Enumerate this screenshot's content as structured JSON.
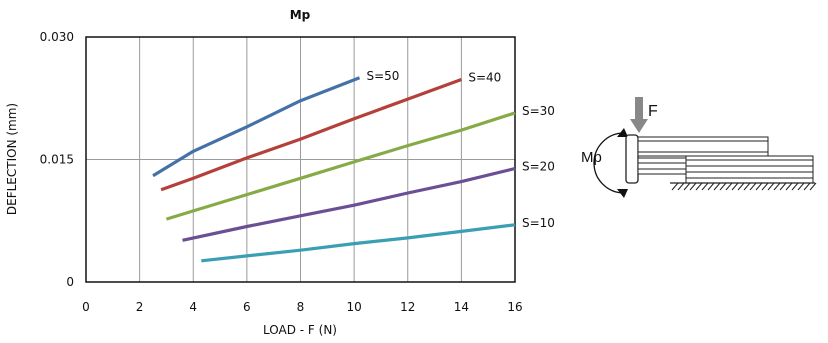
{
  "chart_data": {
    "type": "line",
    "title": "Mp",
    "xlabel": "LOAD - F (N)",
    "ylabel": "DEFLECTION (mm)",
    "xlim": [
      0,
      16
    ],
    "ylim": [
      0,
      0.03
    ],
    "x_ticks": [
      "0",
      "2",
      "4",
      "6",
      "8",
      "10",
      "12",
      "14",
      "16"
    ],
    "y_ticks": [
      "0",
      "0.015",
      "0.030"
    ],
    "grid": true,
    "series": [
      {
        "name": "S=50",
        "color": "#4472a8",
        "x": [
          2.5,
          4,
          6,
          8,
          10.2
        ],
        "y": [
          0.013,
          0.016,
          0.019,
          0.0222,
          0.025
        ]
      },
      {
        "name": "S=40",
        "color": "#b5403a",
        "x": [
          2.8,
          4,
          6,
          8,
          10,
          12,
          14
        ],
        "y": [
          0.0113,
          0.0127,
          0.0152,
          0.0175,
          0.02,
          0.0224,
          0.0248
        ]
      },
      {
        "name": "S=30",
        "color": "#86ab46",
        "x": [
          3,
          4,
          6,
          8,
          10,
          12,
          14,
          16
        ],
        "y": [
          0.0077,
          0.0087,
          0.0107,
          0.0127,
          0.0147,
          0.0167,
          0.0186,
          0.0207
        ]
      },
      {
        "name": "S=20",
        "color": "#6b4f95",
        "x": [
          3.6,
          6,
          8,
          10,
          12,
          14,
          16
        ],
        "y": [
          0.0051,
          0.0068,
          0.0081,
          0.0094,
          0.0109,
          0.0123,
          0.0139
        ]
      },
      {
        "name": "S=10",
        "color": "#3a9fb4",
        "x": [
          4.3,
          6,
          8,
          10,
          12,
          14,
          16
        ],
        "y": [
          0.0026,
          0.0032,
          0.0039,
          0.0047,
          0.0054,
          0.0062,
          0.007
        ]
      }
    ]
  },
  "diagram": {
    "force_label": "F",
    "moment_label": "Mp"
  }
}
